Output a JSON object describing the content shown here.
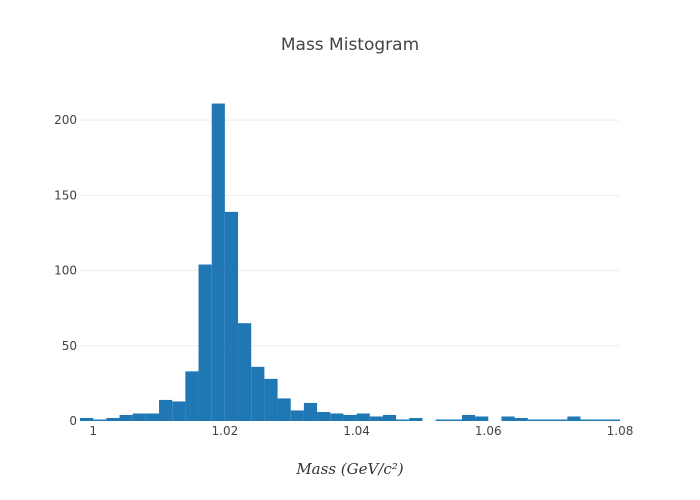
{
  "chart_data": {
    "type": "bar",
    "title": "Mass Mistogram",
    "xlabel": "Mass (GeV/c²)",
    "ylabel": "",
    "xlim": [
      0.998,
      1.08
    ],
    "ylim": [
      0,
      220
    ],
    "bin_width": 0.002,
    "x": [
      0.999,
      1.001,
      1.003,
      1.005,
      1.007,
      1.009,
      1.011,
      1.013,
      1.015,
      1.017,
      1.019,
      1.021,
      1.023,
      1.025,
      1.027,
      1.029,
      1.031,
      1.033,
      1.035,
      1.037,
      1.039,
      1.041,
      1.043,
      1.045,
      1.047,
      1.049,
      1.051,
      1.053,
      1.055,
      1.057,
      1.059,
      1.061,
      1.063,
      1.065,
      1.067,
      1.069,
      1.071,
      1.073,
      1.075,
      1.077,
      1.079
    ],
    "values": [
      2,
      1,
      2,
      4,
      5,
      5,
      14,
      13,
      33,
      104,
      211,
      139,
      65,
      36,
      28,
      15,
      7,
      12,
      6,
      5,
      4,
      5,
      3,
      4,
      1,
      2,
      0,
      1,
      1,
      4,
      3,
      0,
      3,
      2,
      1,
      1,
      1,
      3,
      1,
      1,
      1
    ],
    "xticks": [
      1,
      1.02,
      1.04,
      1.06,
      1.08
    ],
    "xtick_labels": [
      "1",
      "1.02",
      "1.04",
      "1.06",
      "1.08"
    ],
    "yticks": [
      0,
      50,
      100,
      150,
      200
    ],
    "ytick_labels": [
      "0",
      "50",
      "100",
      "150",
      "200"
    ],
    "grid": true,
    "bar_color": "#1f77b4"
  }
}
